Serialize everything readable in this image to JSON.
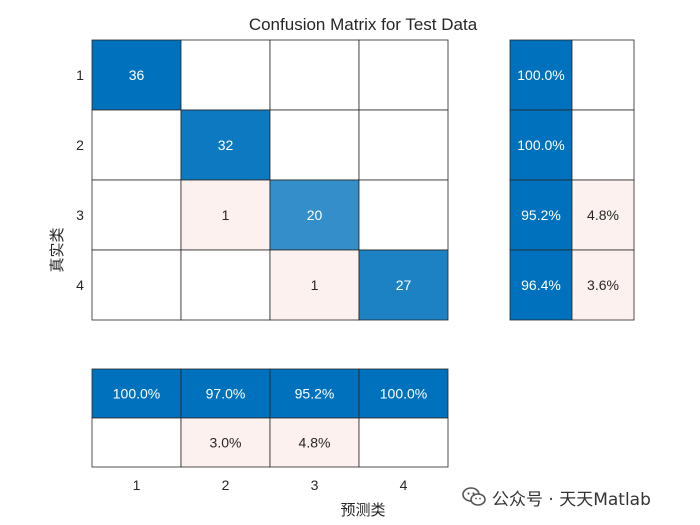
{
  "chart_data": {
    "type": "heatmap",
    "title": "Confusion Matrix for Test Data",
    "xlabel": "预测类",
    "ylabel": "真实类",
    "classes": [
      "1",
      "2",
      "3",
      "4"
    ],
    "matrix": [
      [
        36,
        0,
        0,
        0
      ],
      [
        0,
        32,
        0,
        0
      ],
      [
        0,
        1,
        20,
        0
      ],
      [
        0,
        0,
        1,
        27
      ]
    ],
    "row_summary": [
      [
        "100.0%",
        ""
      ],
      [
        "100.0%",
        ""
      ],
      [
        "95.2%",
        "4.8%"
      ],
      [
        "96.4%",
        "3.6%"
      ]
    ],
    "column_summary": [
      [
        "100.0%",
        "97.0%",
        "95.2%",
        "100.0%"
      ],
      [
        "",
        "3.0%",
        "4.8%",
        ""
      ]
    ],
    "colors": {
      "correct_max": "#0072BD",
      "error": "#FCF1EE",
      "empty": "#FFFFFF",
      "grid": "#262626",
      "text_dark": "#262626",
      "text_light": "#FFFFFF"
    }
  },
  "watermark": {
    "text": "公众号 · 天天Matlab",
    "icon": "wechat-icon"
  }
}
